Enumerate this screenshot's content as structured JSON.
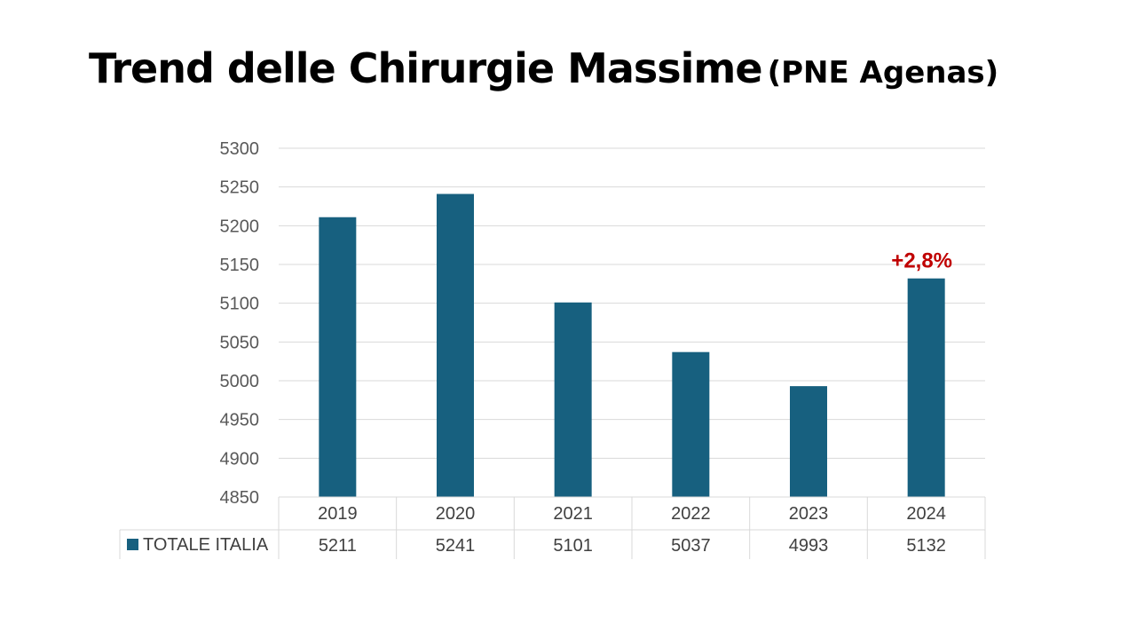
{
  "title": {
    "main": "Trend delle Chirurgie Massime",
    "sub": "(PNE Agenas)"
  },
  "chart_data": {
    "type": "bar",
    "categories": [
      "2019",
      "2020",
      "2021",
      "2022",
      "2023",
      "2024"
    ],
    "series": [
      {
        "name": "TOTALE ITALIA",
        "values": [
          5211,
          5241,
          5101,
          5037,
          4993,
          5132
        ],
        "color": "#17607f"
      }
    ],
    "ylim": [
      4850,
      5300
    ],
    "yticks": [
      4850,
      4900,
      4950,
      5000,
      5050,
      5100,
      5150,
      5200,
      5250,
      5300
    ],
    "grid": true,
    "data_table": true,
    "annotations": [
      {
        "category": "2024",
        "text": "+2,8%",
        "color": "#c00000"
      }
    ]
  }
}
